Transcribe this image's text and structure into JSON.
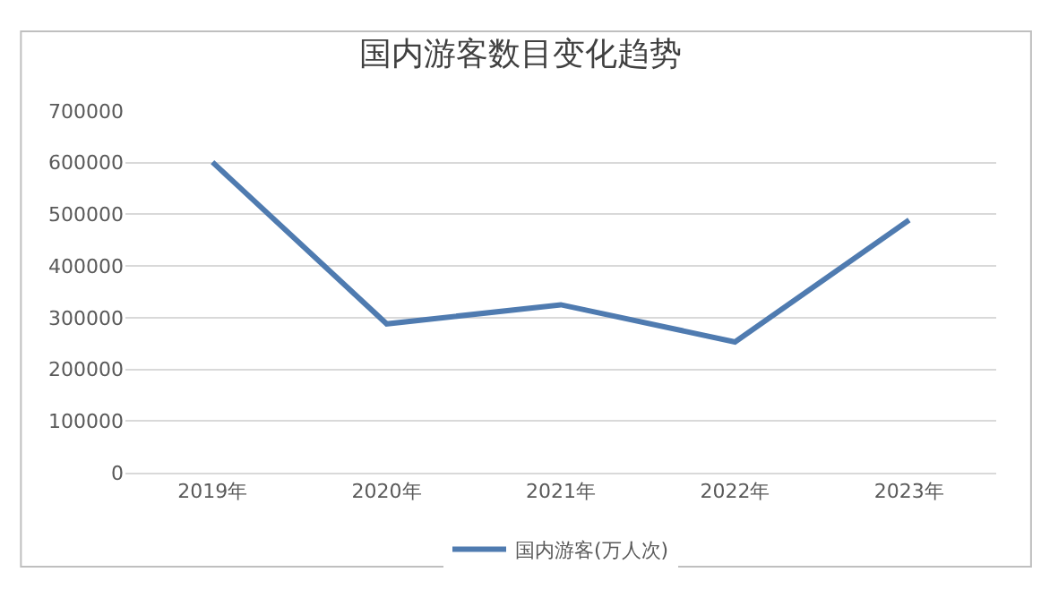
{
  "chart_data": {
    "type": "line",
    "title": "国内游客数目变化趋势",
    "categories": [
      "2019年",
      "2020年",
      "2021年",
      "2022年",
      "2023年"
    ],
    "series": [
      {
        "name": "国内游客(万人次)",
        "color": "#4f7bb0",
        "values": [
          601000,
          288000,
          325000,
          253000,
          489000
        ]
      }
    ],
    "ylim": [
      0,
      700000
    ],
    "yticks": [
      0,
      100000,
      200000,
      300000,
      400000,
      500000,
      600000,
      700000
    ],
    "grid": "y",
    "legend": "bottom",
    "marker": "none",
    "line_style": "solid"
  }
}
